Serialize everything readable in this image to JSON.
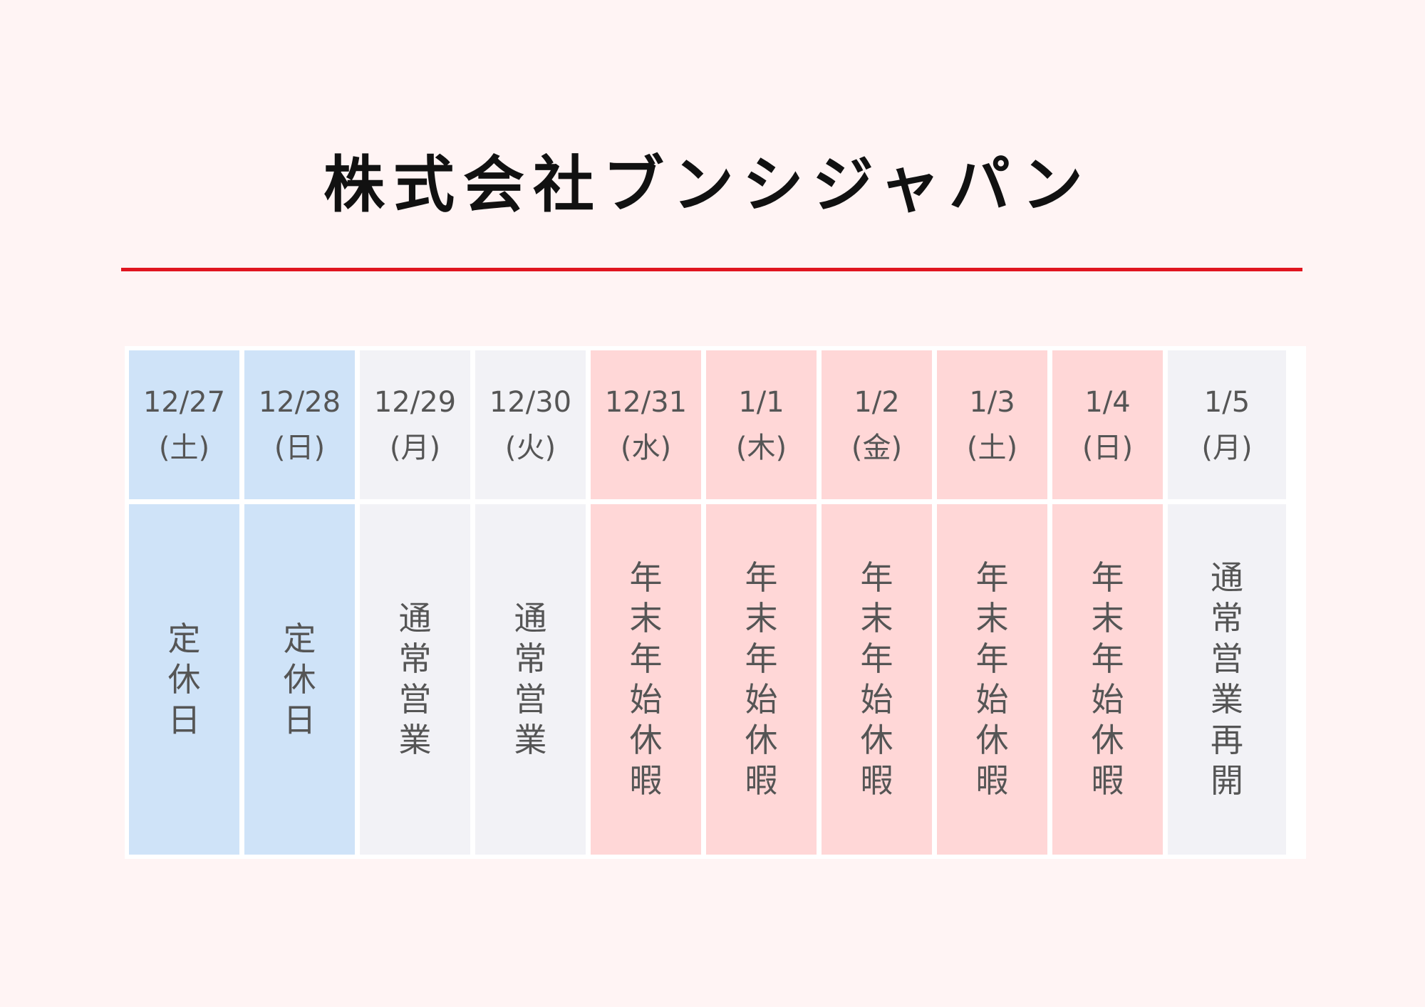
{
  "company_name": "株式会社ブンシジャパン",
  "colors": {
    "page_background": "#fff4f4",
    "accent_rule": "#e0151f",
    "regular_holiday": "#cfe3f8",
    "normal_business": "#f2f2f6",
    "new_year_holiday": "#ffd7d7",
    "text": "#555555"
  },
  "days": [
    {
      "date": "12/27",
      "weekday": "(土)",
      "status": "定休日",
      "category": "regular_holiday"
    },
    {
      "date": "12/28",
      "weekday": "(日)",
      "status": "定休日",
      "category": "regular_holiday"
    },
    {
      "date": "12/29",
      "weekday": "(月)",
      "status": "通常営業",
      "category": "normal_business"
    },
    {
      "date": "12/30",
      "weekday": "(火)",
      "status": "通常営業",
      "category": "normal_business"
    },
    {
      "date": "12/31",
      "weekday": "(水)",
      "status": "年末年始休暇",
      "category": "new_year_holiday"
    },
    {
      "date": "1/1",
      "weekday": "(木)",
      "status": "年末年始休暇",
      "category": "new_year_holiday"
    },
    {
      "date": "1/2",
      "weekday": "(金)",
      "status": "年末年始休暇",
      "category": "new_year_holiday"
    },
    {
      "date": "1/3",
      "weekday": "(土)",
      "status": "年末年始休暇",
      "category": "new_year_holiday"
    },
    {
      "date": "1/4",
      "weekday": "(日)",
      "status": "年末年始休暇",
      "category": "new_year_holiday"
    },
    {
      "date": "1/5",
      "weekday": "(月)",
      "status": "通常営業再開",
      "category": "normal_business"
    }
  ]
}
